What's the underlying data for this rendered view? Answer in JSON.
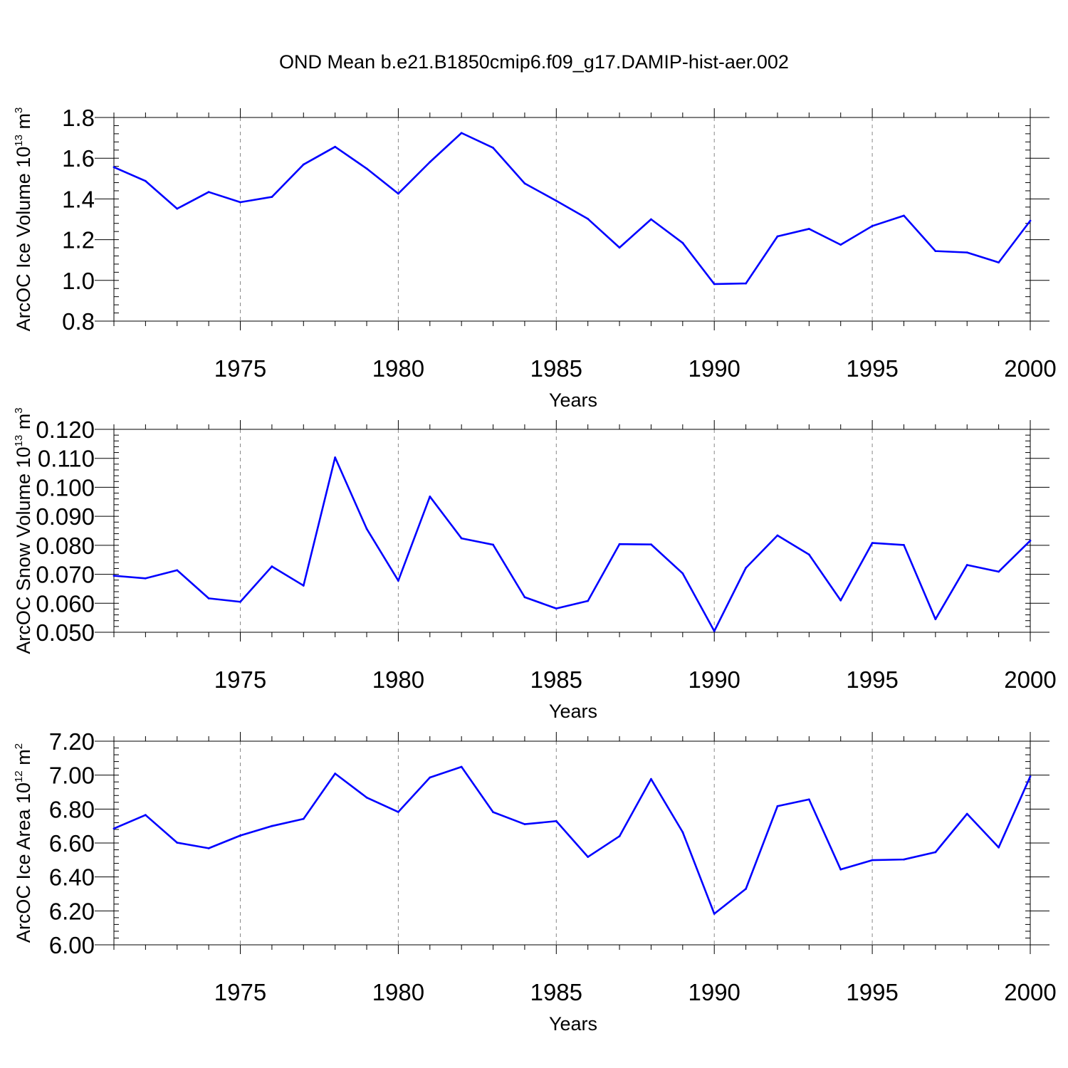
{
  "chart_data": [
    {
      "type": "line",
      "title": "OND Mean b.e21.B1850cmip6.f09_g17.DAMIP-hist-aer.002",
      "xlabel": "Years",
      "ylabel_prefix": "ArcOC Ice Volume 10",
      "ylabel_exponent": "13",
      "ylabel_unit": " m",
      "ylabel_unit_exponent": "3",
      "xlim": [
        1971,
        2000
      ],
      "ylim": [
        0.8,
        1.8
      ],
      "yticks": [
        0.8,
        1.0,
        1.2,
        1.4,
        1.6,
        1.8
      ],
      "ytick_labels": [
        "0.8",
        "1.0",
        "1.2",
        "1.4",
        "1.6",
        "1.8"
      ],
      "yminor_step": 0.04,
      "xticks": [
        1975,
        1980,
        1985,
        1990,
        1995,
        2000
      ],
      "xtick_labels": [
        "1975",
        "1980",
        "1985",
        "1990",
        "1995",
        "2000"
      ],
      "gridlines": "vertical dashed at major x ticks",
      "line_color": "#0000ff",
      "series": [
        {
          "name": "Ice Volume",
          "x": [
            1971,
            1972,
            1973,
            1974,
            1975,
            1976,
            1977,
            1978,
            1979,
            1980,
            1981,
            1982,
            1983,
            1984,
            1985,
            1986,
            1987,
            1988,
            1989,
            1990,
            1991,
            1992,
            1993,
            1994,
            1995,
            1996,
            1997,
            1998,
            1999,
            2000
          ],
          "values": [
            1.556,
            1.488,
            1.352,
            1.434,
            1.384,
            1.41,
            1.569,
            1.656,
            1.549,
            1.426,
            1.581,
            1.724,
            1.651,
            1.476,
            1.391,
            1.302,
            1.161,
            1.3,
            1.184,
            0.982,
            0.985,
            1.216,
            1.253,
            1.175,
            1.267,
            1.318,
            1.144,
            1.137,
            1.088,
            1.293
          ]
        }
      ]
    },
    {
      "type": "line",
      "xlabel": "Years",
      "ylabel_prefix": "ArcOC Snow Volume 10",
      "ylabel_exponent": "13",
      "ylabel_unit": " m",
      "ylabel_unit_exponent": "3",
      "xlim": [
        1971,
        2000
      ],
      "ylim": [
        0.05,
        0.12
      ],
      "yticks": [
        0.05,
        0.06,
        0.07,
        0.08,
        0.09,
        0.1,
        0.11,
        0.12
      ],
      "ytick_labels": [
        "0.050",
        "0.060",
        "0.070",
        "0.080",
        "0.090",
        "0.100",
        "0.110",
        "0.120"
      ],
      "yminor_step": 0.002,
      "xticks": [
        1975,
        1980,
        1985,
        1990,
        1995,
        2000
      ],
      "xtick_labels": [
        "1975",
        "1980",
        "1985",
        "1990",
        "1995",
        "2000"
      ],
      "gridlines": "vertical dashed at major x ticks",
      "line_color": "#0000ff",
      "series": [
        {
          "name": "Snow Volume",
          "x": [
            1971,
            1972,
            1973,
            1974,
            1975,
            1976,
            1977,
            1978,
            1979,
            1980,
            1981,
            1982,
            1983,
            1984,
            1985,
            1986,
            1987,
            1988,
            1989,
            1990,
            1991,
            1992,
            1993,
            1994,
            1995,
            1996,
            1997,
            1998,
            1999,
            2000
          ],
          "values": [
            0.0695,
            0.0686,
            0.0714,
            0.0617,
            0.0605,
            0.0727,
            0.0661,
            0.1103,
            0.0857,
            0.0678,
            0.0968,
            0.0824,
            0.0802,
            0.0621,
            0.0582,
            0.0608,
            0.0804,
            0.0803,
            0.0703,
            0.0504,
            0.0722,
            0.0834,
            0.0768,
            0.061,
            0.0808,
            0.0801,
            0.0545,
            0.0732,
            0.0709,
            0.0816
          ]
        }
      ]
    },
    {
      "type": "line",
      "xlabel": "Years",
      "ylabel_prefix": "ArcOC Ice Area 10",
      "ylabel_exponent": "12",
      "ylabel_unit": " m",
      "ylabel_unit_exponent": "2",
      "xlim": [
        1971,
        2000
      ],
      "ylim": [
        6.0,
        7.2
      ],
      "yticks": [
        6.0,
        6.2,
        6.4,
        6.6,
        6.8,
        7.0,
        7.2
      ],
      "ytick_labels": [
        "6.00",
        "6.20",
        "6.40",
        "6.60",
        "6.80",
        "7.00",
        "7.20"
      ],
      "yminor_step": 0.04,
      "xticks": [
        1975,
        1980,
        1985,
        1990,
        1995,
        2000
      ],
      "xtick_labels": [
        "1975",
        "1980",
        "1985",
        "1990",
        "1995",
        "2000"
      ],
      "gridlines": "vertical dashed at major x ticks",
      "line_color": "#0000ff",
      "series": [
        {
          "name": "Ice Area",
          "x": [
            1971,
            1972,
            1973,
            1974,
            1975,
            1976,
            1977,
            1978,
            1979,
            1980,
            1981,
            1982,
            1983,
            1984,
            1985,
            1986,
            1987,
            1988,
            1989,
            1990,
            1991,
            1992,
            1993,
            1994,
            1995,
            1996,
            1997,
            1998,
            1999,
            2000
          ],
          "values": [
            6.685,
            6.765,
            6.602,
            6.569,
            6.644,
            6.7,
            6.742,
            7.009,
            6.868,
            6.783,
            6.986,
            7.049,
            6.782,
            6.711,
            6.729,
            6.518,
            6.64,
            6.977,
            6.664,
            6.183,
            6.33,
            6.817,
            6.857,
            6.444,
            6.499,
            6.503,
            6.546,
            6.772,
            6.574,
            6.992
          ]
        }
      ]
    }
  ]
}
